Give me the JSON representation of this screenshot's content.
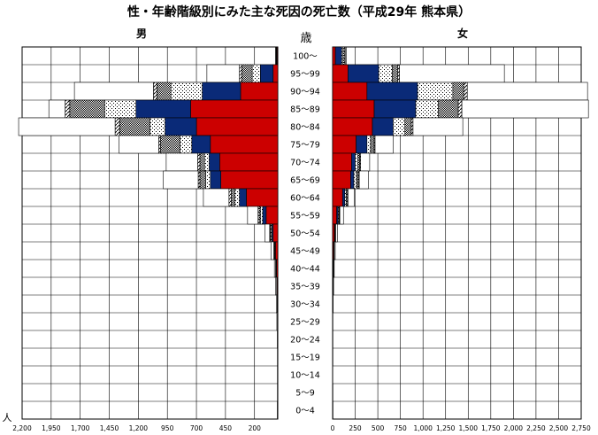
{
  "chart_data": {
    "type": "bar",
    "title": "性・年齢階級別にみた主な死因の死亡数（平成29年 熊本県）",
    "left_label": "男",
    "right_label": "女",
    "center_label": "歳",
    "unit_label": "人",
    "categories": [
      "100～",
      "95～99",
      "90～94",
      "85～89",
      "80～84",
      "75～79",
      "70～74",
      "65～69",
      "60～64",
      "55～59",
      "50～54",
      "45～49",
      "40～44",
      "35～39",
      "30～34",
      "25～29",
      "20～24",
      "15～19",
      "10～14",
      "5～9",
      "0～4"
    ],
    "male_ticks": [
      "2,200",
      "1,950",
      "1,700",
      "1,450",
      "1,200",
      "950",
      "700",
      "450",
      "200"
    ],
    "female_ticks": [
      "0",
      "250",
      "500",
      "750",
      "1,000",
      "1,250",
      "1,500",
      "1,750",
      "2,000",
      "2,250",
      "2,500",
      "2,750"
    ],
    "series": [
      {
        "key": "s1",
        "color": "#cc0000",
        "pattern": "solid",
        "male": [
          5,
          40,
          320,
          750,
          700,
          580,
          500,
          490,
          270,
          100,
          40,
          20,
          10,
          5,
          3,
          2,
          1,
          1,
          1,
          1,
          1
        ],
        "female": [
          30,
          170,
          380,
          460,
          440,
          260,
          210,
          200,
          110,
          45,
          20,
          10,
          5,
          3,
          2,
          1,
          1,
          1,
          1,
          1,
          1
        ]
      },
      {
        "key": "s2",
        "color": "#0a2a78",
        "pattern": "solid",
        "male": [
          5,
          110,
          330,
          470,
          270,
          160,
          90,
          90,
          60,
          30,
          10,
          5,
          5,
          2,
          1,
          1,
          0,
          0,
          0,
          0,
          0
        ],
        "female": [
          70,
          340,
          560,
          460,
          230,
          120,
          40,
          35,
          25,
          15,
          5,
          5,
          3,
          2,
          1,
          0,
          0,
          0,
          0,
          0,
          0
        ]
      },
      {
        "key": "s3",
        "color": "#ffffff",
        "pattern": "dots",
        "male": [
          2,
          70,
          270,
          270,
          130,
          100,
          40,
          40,
          40,
          20,
          10,
          5,
          2,
          1,
          1,
          0,
          0,
          0,
          0,
          0,
          0
        ],
        "female": [
          15,
          150,
          390,
          250,
          130,
          40,
          30,
          30,
          15,
          10,
          5,
          2,
          1,
          1,
          0,
          0,
          0,
          0,
          0,
          0,
          0
        ]
      },
      {
        "key": "s4",
        "color": "#ffffff",
        "pattern": "dense",
        "male": [
          3,
          90,
          120,
          300,
          260,
          170,
          40,
          50,
          30,
          10,
          5,
          2,
          1,
          1,
          0,
          0,
          0,
          0,
          0,
          0,
          0
        ],
        "female": [
          15,
          60,
          120,
          220,
          70,
          40,
          20,
          20,
          10,
          5,
          2,
          1,
          1,
          0,
          0,
          0,
          0,
          0,
          0,
          0,
          0
        ]
      },
      {
        "key": "s5",
        "color": "#ffffff",
        "pattern": "hatch",
        "male": [
          2,
          20,
          30,
          40,
          40,
          15,
          20,
          15,
          20,
          10,
          5,
          2,
          1,
          1,
          0,
          0,
          0,
          0,
          0,
          0,
          0
        ],
        "female": [
          10,
          20,
          40,
          40,
          20,
          10,
          10,
          10,
          10,
          5,
          2,
          1,
          1,
          0,
          0,
          0,
          0,
          0,
          0,
          0,
          0
        ]
      },
      {
        "key": "s6",
        "color": "#ffffff",
        "pattern": "solid",
        "male": [
          2,
          280,
          680,
          140,
          830,
          340,
          270,
          300,
          220,
          90,
          40,
          25,
          10,
          10,
          8,
          5,
          3,
          2,
          2,
          2,
          3
        ],
        "female": [
          10,
          1160,
          1330,
          1400,
          550,
          200,
          100,
          100,
          70,
          40,
          20,
          10,
          7,
          5,
          3,
          2,
          2,
          2,
          1,
          2,
          3
        ]
      }
    ]
  }
}
